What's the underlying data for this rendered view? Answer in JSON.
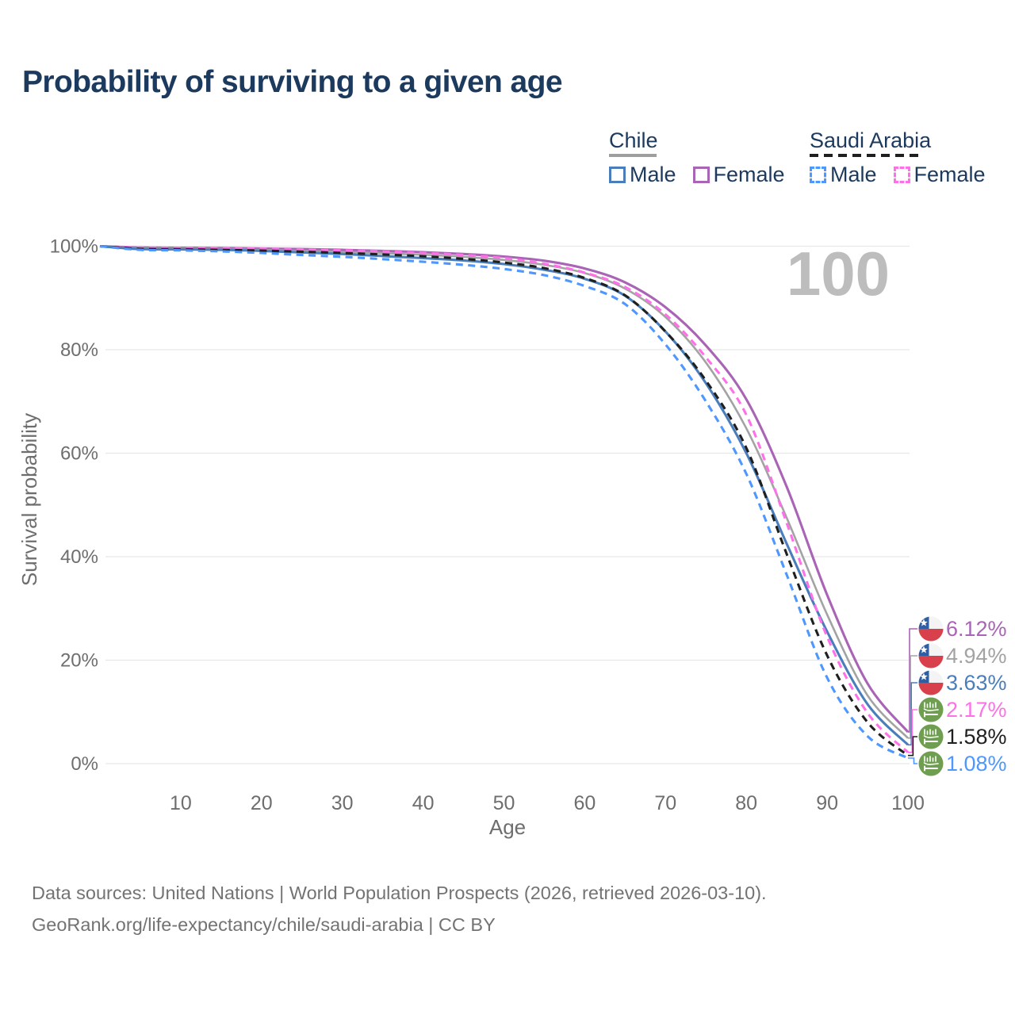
{
  "title": "Probability of surviving to a given age",
  "legend": {
    "groups": [
      {
        "id": "chile",
        "label": "Chile",
        "items": [
          {
            "label": "Male"
          },
          {
            "label": "Female"
          }
        ]
      },
      {
        "id": "saudi-arabia",
        "label": "Saudi Arabia",
        "items": [
          {
            "label": "Male"
          },
          {
            "label": "Female"
          }
        ]
      }
    ]
  },
  "footer": {
    "line1": "Data sources: United Nations | World Population Prospects (2026, retrieved 2026-03-10).",
    "line2": "GeoRank.org/life-expectancy/chile/saudi-arabia | CC BY"
  },
  "chart_data": {
    "type": "line",
    "title": "Probability of surviving to a given age",
    "xlabel": "Age",
    "ylabel": "Survival probability",
    "watermark": "100",
    "xlim": [
      0,
      100
    ],
    "ylim": [
      0,
      100
    ],
    "x_ticks": [
      10,
      20,
      30,
      40,
      50,
      60,
      70,
      80,
      90,
      100
    ],
    "y_ticks": [
      0,
      20,
      40,
      60,
      80,
      100
    ],
    "y_tick_suffix": "%",
    "grid": "horizontal",
    "x": [
      0,
      5,
      10,
      15,
      20,
      25,
      30,
      35,
      40,
      45,
      50,
      55,
      60,
      65,
      70,
      75,
      80,
      85,
      90,
      95,
      100
    ],
    "series": [
      {
        "id": "chile-female",
        "name": "Chile Female",
        "country": "Chile",
        "sex": "female",
        "flag": "chile",
        "color": "#a964b6",
        "dashed": false,
        "end_label": "6.12%",
        "end_value": 6.12,
        "values": [
          100,
          99.75,
          99.7,
          99.65,
          99.55,
          99.45,
          99.3,
          99.1,
          98.85,
          98.5,
          98.0,
          97.2,
          95.7,
          93.0,
          88.2,
          80.8,
          70.4,
          53.5,
          32.6,
          15.5,
          6.12
        ]
      },
      {
        "id": "chile-both",
        "name": "Chile Both sexes",
        "country": "Chile",
        "sex": "both",
        "flag": "chile",
        "color": "#a3a3a3",
        "dashed": false,
        "end_label": "4.94%",
        "end_value": 4.94,
        "values": [
          100,
          99.6,
          99.55,
          99.45,
          99.3,
          99.1,
          98.9,
          98.65,
          98.35,
          97.95,
          97.35,
          96.4,
          94.8,
          91.8,
          86.3,
          77.5,
          64.8,
          47.5,
          28.8,
          13.2,
          4.94
        ]
      },
      {
        "id": "chile-male",
        "name": "Chile Male",
        "country": "Chile",
        "sex": "male",
        "flag": "chile",
        "color": "#4a7ebb",
        "dashed": false,
        "end_label": "3.63%",
        "end_value": 3.63,
        "values": [
          100,
          99.45,
          99.4,
          99.3,
          99.1,
          98.8,
          98.5,
          98.1,
          97.7,
          97.25,
          96.55,
          95.45,
          93.7,
          90.4,
          83.5,
          73.5,
          60.0,
          42.5,
          25.5,
          11.5,
          3.63
        ]
      },
      {
        "id": "saudi-female",
        "name": "Saudi Arabia Female",
        "country": "Saudi Arabia",
        "sex": "female",
        "flag": "saudi",
        "color": "#ff70e8",
        "dashed": true,
        "end_label": "2.17%",
        "end_value": 2.17,
        "values": [
          100,
          99.7,
          99.65,
          99.6,
          99.5,
          99.35,
          99.2,
          99.0,
          98.7,
          98.3,
          97.7,
          96.6,
          94.9,
          92.1,
          86.8,
          78.5,
          67.4,
          46.5,
          24.5,
          9.8,
          2.17
        ]
      },
      {
        "id": "saudi-both",
        "name": "Saudi Arabia Both sexes",
        "country": "Saudi Arabia",
        "sex": "both",
        "flag": "saudi",
        "color": "#1f1f1f",
        "dashed": true,
        "end_label": "1.58%",
        "end_value": 1.58,
        "values": [
          100,
          99.5,
          99.4,
          99.3,
          99.15,
          98.95,
          98.7,
          98.4,
          98.05,
          97.55,
          96.85,
          95.75,
          93.85,
          90.5,
          83.5,
          74.0,
          61.0,
          40.5,
          20.9,
          8.0,
          1.58
        ]
      },
      {
        "id": "saudi-male",
        "name": "Saudi Arabia Male",
        "country": "Saudi Arabia",
        "sex": "male",
        "flag": "saudi",
        "color": "#4d97ff",
        "dashed": true,
        "end_label": "1.08%",
        "end_value": 1.08,
        "values": [
          100,
          99.3,
          99.2,
          99.0,
          98.7,
          98.3,
          97.95,
          97.5,
          97.0,
          96.4,
          95.6,
          94.4,
          92.3,
          88.8,
          81.0,
          70.0,
          56.0,
          36.5,
          16.6,
          5.3,
          1.08
        ]
      }
    ],
    "flag_colors": {
      "chile_blue": "#2e5fa5",
      "chile_red": "#d8414b",
      "chile_white": "#f4f4f4",
      "saudi_green": "#6f9e50"
    }
  }
}
